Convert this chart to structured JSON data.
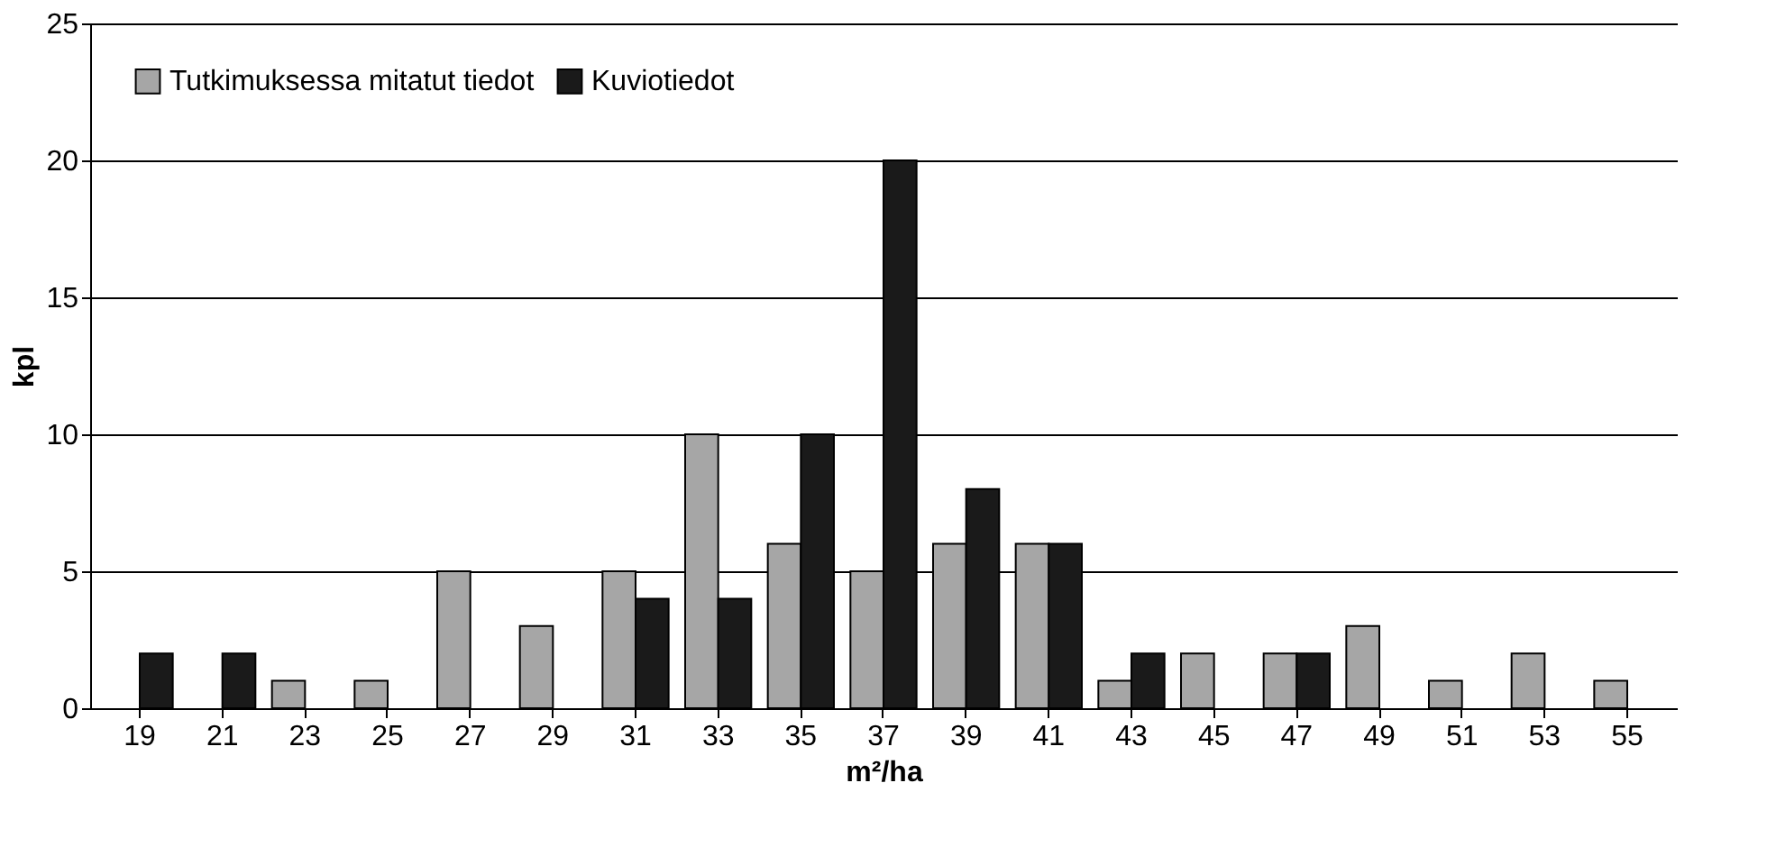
{
  "chart_data": {
    "type": "bar",
    "xlabel": "m²/ha",
    "ylabel": "kpl",
    "categories": [
      "19",
      "21",
      "23",
      "25",
      "27",
      "29",
      "31",
      "33",
      "35",
      "37",
      "39",
      "41",
      "43",
      "45",
      "47",
      "49",
      "51",
      "53",
      "55"
    ],
    "series": [
      {
        "name": "Tutkimuksessa mitatut tiedot",
        "color": "#a6a6a6",
        "values": [
          null,
          null,
          1,
          1,
          5,
          3,
          5,
          10,
          6,
          5,
          6,
          6,
          1,
          2,
          2,
          3,
          1,
          2,
          1
        ]
      },
      {
        "name": "Kuviotiedot",
        "color": "#1a1a1a",
        "values": [
          2,
          2,
          null,
          null,
          null,
          null,
          4,
          4,
          10,
          20,
          8,
          6,
          2,
          null,
          2,
          null,
          null,
          null,
          null
        ]
      }
    ],
    "ylim": [
      0,
      25
    ],
    "yticks": [
      0,
      5,
      10,
      15,
      20,
      25
    ],
    "grid": "y",
    "legend": "top left"
  }
}
